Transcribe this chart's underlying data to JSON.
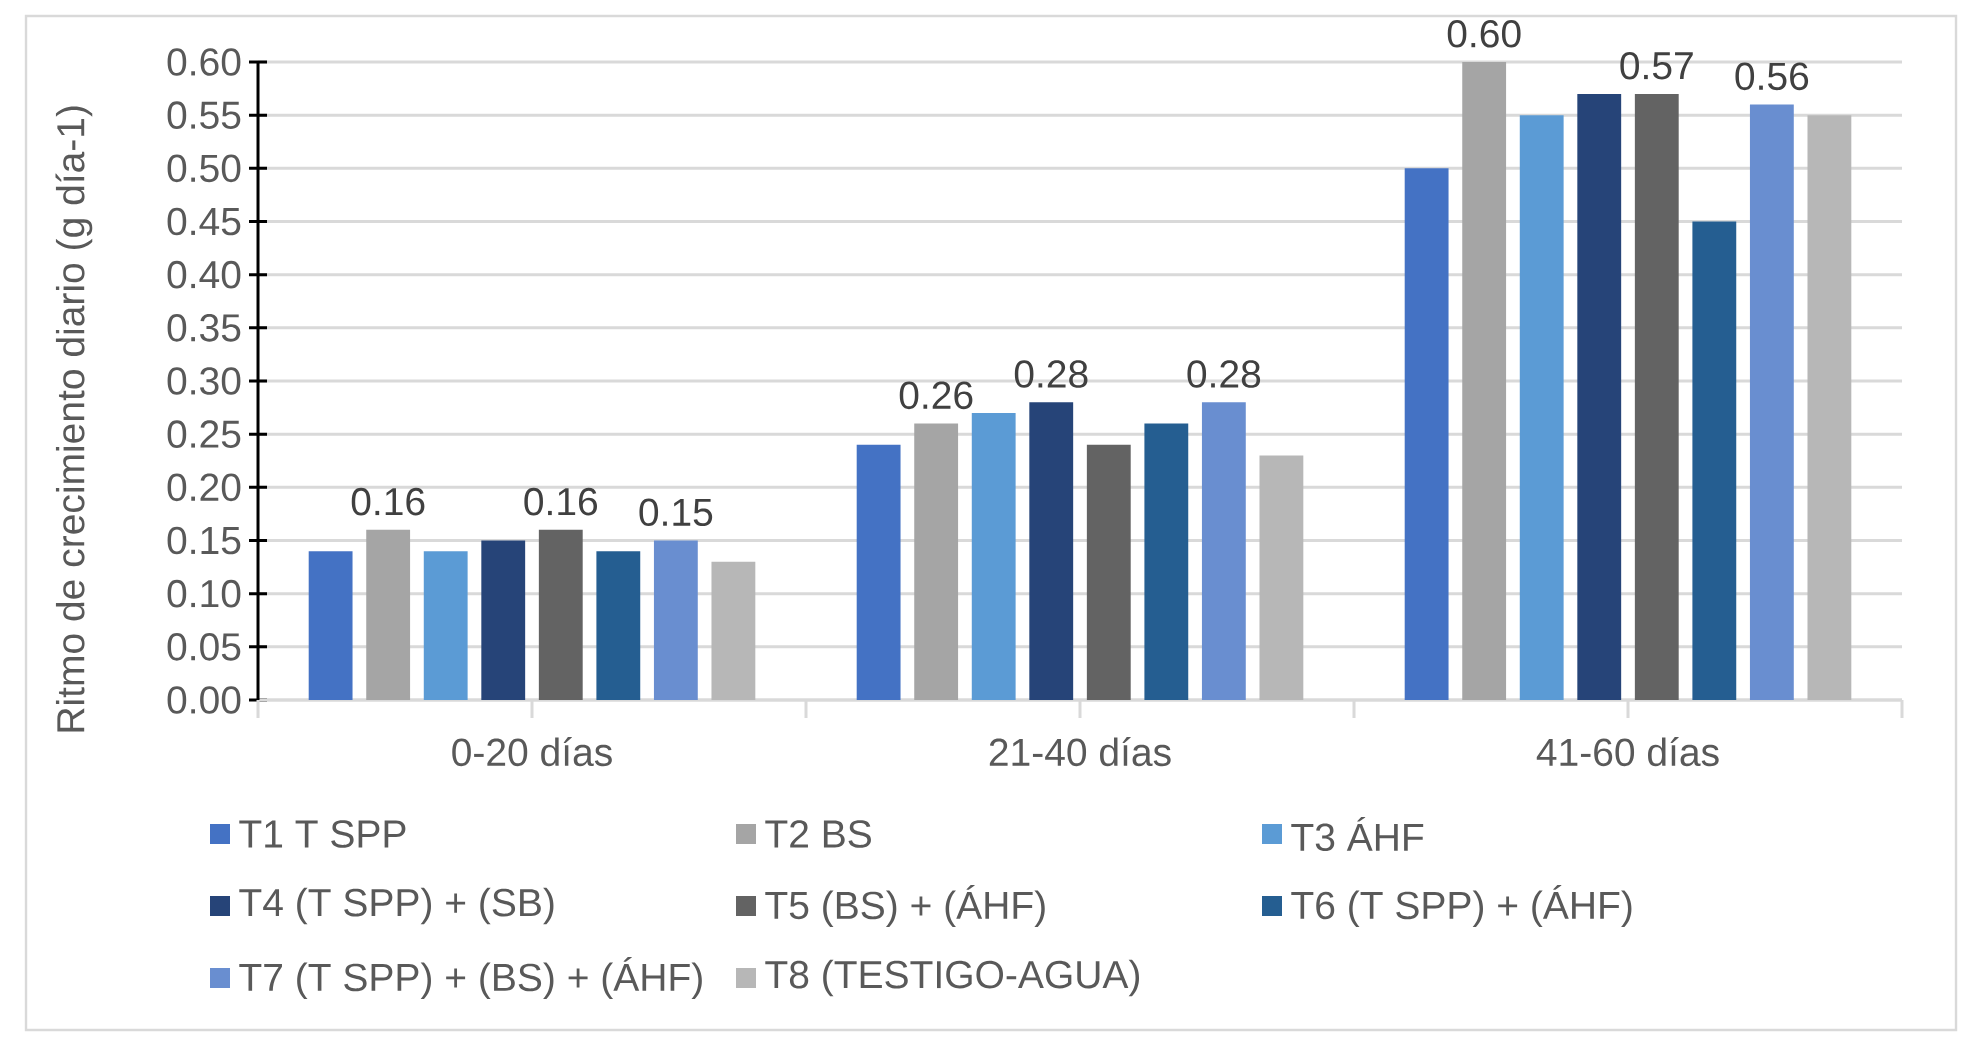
{
  "chart_data": {
    "type": "bar",
    "ylabel": "Ritmo de crecimiento diario (g día-1)",
    "categories": [
      "0-20 días",
      "21-40 días",
      "41-60 días"
    ],
    "series": [
      {
        "name": "T1 T SPP",
        "color": "#4472c4",
        "values": [
          0.14,
          0.24,
          0.5
        ]
      },
      {
        "name": "T2 BS",
        "color": "#a5a5a5",
        "values": [
          0.16,
          0.26,
          0.6
        ],
        "value_labels": [
          "0.16",
          "0.26",
          "0.60"
        ]
      },
      {
        "name": "T3 ÁHF",
        "color": "#5b9bd5",
        "values": [
          0.14,
          0.27,
          0.55
        ]
      },
      {
        "name": "T4 (T SPP) + (SB)",
        "color": "#264478",
        "values": [
          0.15,
          0.28,
          0.57
        ],
        "value_labels": [
          null,
          "0.28",
          null
        ]
      },
      {
        "name": "T5 (BS) + (ÁHF)",
        "color": "#636363",
        "values": [
          0.16,
          0.24,
          0.57
        ],
        "value_labels": [
          "0.16",
          null,
          "0.57"
        ]
      },
      {
        "name": "T6 (T SPP) + (ÁHF)",
        "color": "#255e91",
        "values": [
          0.14,
          0.26,
          0.45
        ]
      },
      {
        "name": "T7 (T SPP) + (BS) + (ÁHF)",
        "color": "#698ed0",
        "values": [
          0.15,
          0.28,
          0.56
        ],
        "value_labels": [
          "0.15",
          "0.28",
          "0.56"
        ]
      },
      {
        "name": "T8 (TESTIGO-AGUA)",
        "color": "#b7b7b7",
        "values": [
          0.13,
          0.23,
          0.55
        ]
      }
    ],
    "ylim": [
      0,
      0.6
    ],
    "yticks": [
      {
        "value": 0,
        "label": "0.00"
      },
      {
        "value": 0.05,
        "label": "0.05"
      },
      {
        "value": 0.1,
        "label": "0.10"
      },
      {
        "value": 0.15,
        "label": "0.15"
      },
      {
        "value": 0.2,
        "label": "0.20"
      },
      {
        "value": 0.25,
        "label": "0.25"
      },
      {
        "value": 0.3,
        "label": "0.30"
      },
      {
        "value": 0.35,
        "label": "0.35"
      },
      {
        "value": 0.4,
        "label": "0.40"
      },
      {
        "value": 0.45,
        "label": "0.45"
      },
      {
        "value": 0.5,
        "label": "0.50"
      },
      {
        "value": 0.55,
        "label": "0.55"
      },
      {
        "value": 0.6,
        "label": "0.60"
      }
    ],
    "grid": "y",
    "legend": "bottom"
  }
}
